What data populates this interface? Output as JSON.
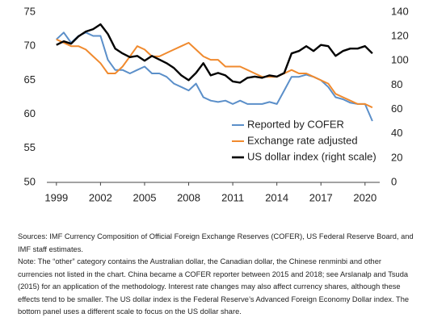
{
  "chart_data": {
    "type": "line",
    "x": [
      1999,
      1999.5,
      2000,
      2000.5,
      2001,
      2001.5,
      2002,
      2002.5,
      2003,
      2003.5,
      2004,
      2004.5,
      2005,
      2005.5,
      2006,
      2006.5,
      2007,
      2007.5,
      2008,
      2008.5,
      2009,
      2009.5,
      2010,
      2010.5,
      2011,
      2011.5,
      2012,
      2012.5,
      2013,
      2013.5,
      2014,
      2014.5,
      2015,
      2015.5,
      2016,
      2016.5,
      2017,
      2017.5,
      2018,
      2018.5,
      2019,
      2019.5,
      2020,
      2020.5
    ],
    "series": [
      {
        "name": "Reported by COFER",
        "color": "#5b8fc9",
        "values": [
          71,
          72,
          70.5,
          71.5,
          72,
          71.5,
          71.5,
          68,
          66.5,
          66.5,
          66,
          66.5,
          67,
          66,
          66,
          65.5,
          64.5,
          64,
          63.5,
          64.5,
          62.5,
          62,
          61.8,
          62,
          61.5,
          62,
          61.5,
          61.5,
          61.5,
          61.8,
          61.5,
          63.5,
          65.5,
          65.5,
          65.8,
          65.5,
          65,
          64,
          62.5,
          62.2,
          61.7,
          61.5,
          61.5,
          59
        ]
      },
      {
        "name": "Exchange rate adjusted",
        "color": "#f08a2e",
        "values": [
          71,
          70.5,
          70,
          70,
          69.5,
          68.5,
          67.5,
          66,
          66,
          67,
          68.5,
          70,
          69.5,
          68.5,
          68.5,
          69,
          69.5,
          70,
          70.5,
          69.5,
          68.5,
          68,
          68,
          67,
          67,
          67,
          66.5,
          66,
          65.5,
          65.5,
          65.5,
          66,
          66.5,
          66,
          66,
          65.5,
          65,
          64.5,
          63,
          62.5,
          62,
          61.5,
          61.5,
          61
        ]
      },
      {
        "name": "US dollar index (right scale)",
        "color": "#000000",
        "axis": "y2",
        "values": [
          113,
          116,
          114,
          120,
          124,
          126,
          130,
          122,
          110,
          106,
          103,
          104,
          100,
          104,
          101,
          98,
          94,
          88,
          84,
          90,
          98,
          88,
          90,
          88,
          83,
          82,
          86,
          87,
          86,
          88,
          87,
          90,
          106,
          108,
          112,
          108,
          113,
          112,
          104,
          108,
          110,
          110,
          112,
          106
        ]
      }
    ],
    "xlim": [
      1998.35,
      2021.0
    ],
    "xticks": [
      1999,
      2002,
      2005,
      2008,
      2011,
      2014,
      2017,
      2020
    ],
    "ylim": [
      50,
      75
    ],
    "yticks": [
      50,
      55,
      60,
      65,
      70,
      75
    ],
    "y2lim": [
      0,
      140
    ],
    "y2ticks": [
      0,
      20,
      40,
      60,
      80,
      100,
      120,
      140
    ],
    "grid": false,
    "legend": "lower right"
  },
  "notes": [
    "Sources: IMF Currency Composition of Official Foreign Exchange Reserves (COFER), US Federal Reserve Board, and IMF staff estimates.",
    "Note: The “other” category contains the Australian dollar, the Canadian dollar, the Chinese renminbi and other currencies not listed in the chart. China became a COFER reporter between 2015 and 2018; see Arslanalp and Tsuda (2015) for an application of the methodology. Interest rate changes may also affect currency shares, although these effects tend to be smaller. The US dollar index is the Federal Reserve’s Advanced Foreign Economy Dollar index. The bottom panel uses a different scale to focus on the US dollar share."
  ]
}
